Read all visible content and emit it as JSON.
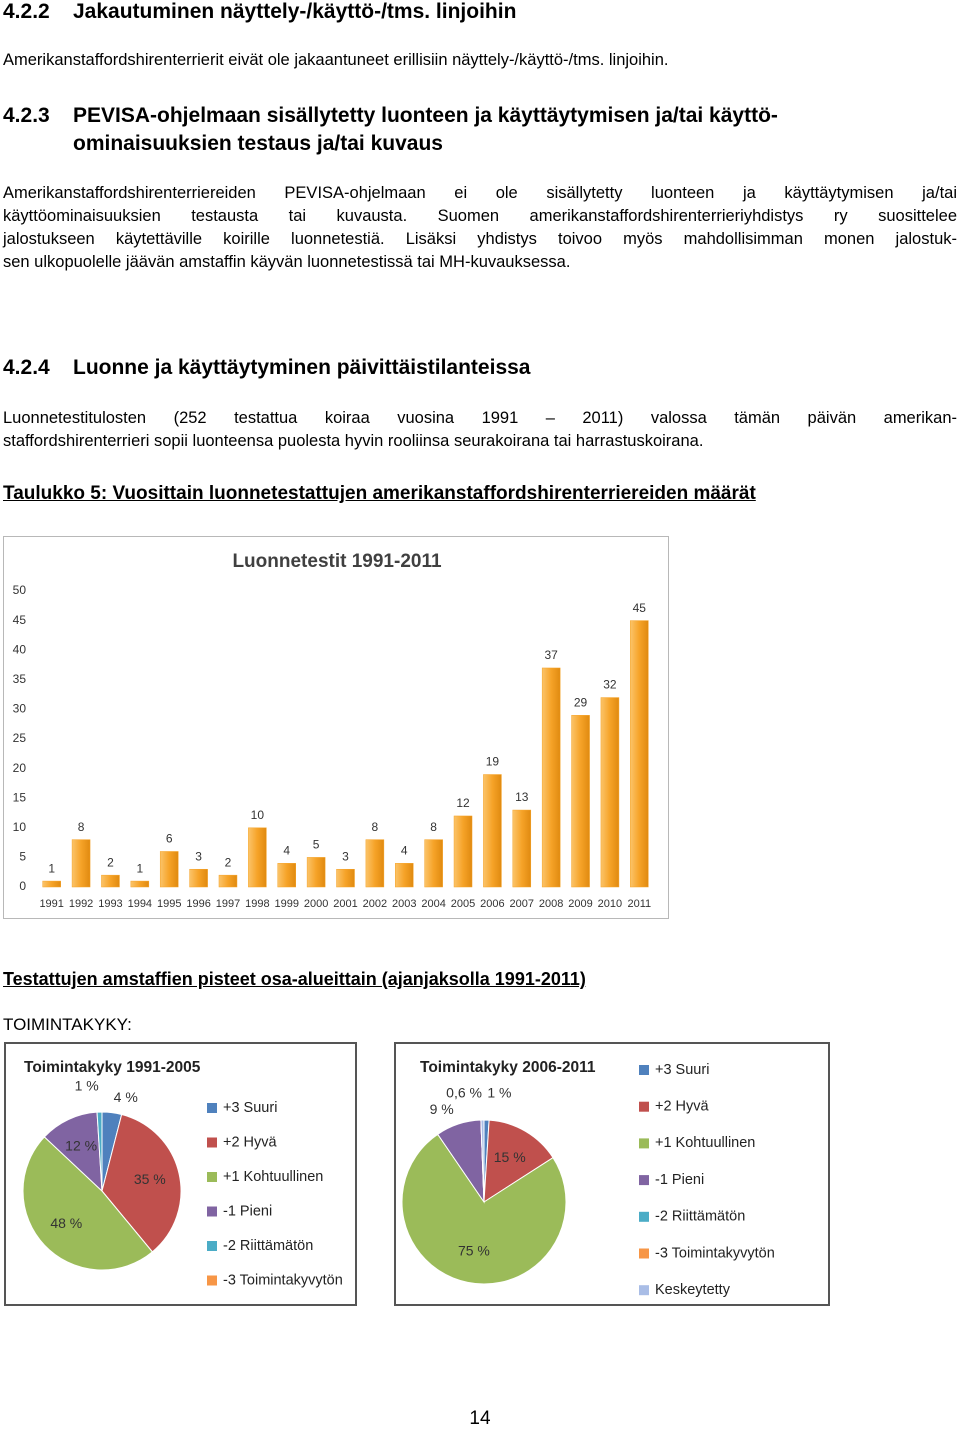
{
  "sections": [
    {
      "number": "4.2.2",
      "title_lines": [
        "Jakautuminen näyttely-/käyttö-/tms. linjoihin"
      ],
      "text_lines": [
        "Amerikanstaffordshirenterrierit eivät ole jakaantuneet erillisiin näyttely-/käyttö-/tms. linjoihin."
      ]
    },
    {
      "number": "4.2.3",
      "title_lines": [
        "PEVISA-ohjelmaan sisällytetty luonteen ja käyttäytymisen ja/tai käyttö-",
        "ominaisuuksien testaus ja/tai kuvaus"
      ],
      "text_lines": [
        "Amerikanstaffordshirenterriereiden PEVISA-ohjelmaan ei ole sisällytetty luonteen ja käyttäytymisen ja/tai",
        "käyttöominaisuuksien testausta tai kuvausta. Suomen amerikanstaffordshirenterrieriyhdistys ry suosittelee",
        "jalostukseen käytettäville koirille luonnetestiä. Lisäksi yhdistys toivoo myös mahdollisimman monen jalostuk-",
        "sen ulkopuolelle jäävän amstaffin käyvän luonnetestissä tai MH-kuvauksessa."
      ]
    },
    {
      "number": "4.2.4",
      "title_lines": [
        "Luonne ja käyttäytyminen päivittäistilanteissa"
      ],
      "text_lines": [
        "Luonnetestitulosten (252 testattua koiraa vuosina 1991 – 2011) valossa tämän päivän amerikan-",
        "staffordshirenterrieri sopii luonteensa puolesta hyvin rooliinsa seurakoirana tai harrastuskoirana."
      ]
    }
  ],
  "table_caption": "Taulukko 5: Vuosittain luonnetestattujen amerikanstaffordshirenterriereiden määrät",
  "subheading": "Testattujen amstaffien pisteet osa-alueittain (ajanjaksolla 1991-2011)",
  "label": "TOIMINTAKYKY:",
  "page_number": "14",
  "chart_data": [
    {
      "type": "bar",
      "title": "Luonnetestit 1991-2011",
      "categories": [
        "1991",
        "1992",
        "1993",
        "1994",
        "1995",
        "1996",
        "1997",
        "1998",
        "1999",
        "2000",
        "2001",
        "2002",
        "2003",
        "2004",
        "2005",
        "2006",
        "2007",
        "2008",
        "2009",
        "2010",
        "2011"
      ],
      "values": [
        1,
        8,
        2,
        1,
        6,
        3,
        2,
        10,
        4,
        5,
        3,
        8,
        4,
        8,
        12,
        19,
        13,
        37,
        29,
        32,
        45
      ],
      "color": "#f6a328",
      "ylim": [
        0,
        50
      ],
      "yticks": [
        0,
        5,
        10,
        15,
        20,
        25,
        30,
        35,
        40,
        45,
        50
      ]
    },
    {
      "type": "pie",
      "title": "Toimintakyky 1991-2005",
      "categories": [
        "+3 Suuri",
        "+2 Hyvä",
        "+1 Kohtuullinen",
        "-1 Pieni",
        "-2 Riittämätön",
        "-3 Toimintakyvytön"
      ],
      "values": [
        4,
        35,
        48,
        12,
        1,
        0
      ],
      "value_labels": [
        "4 %",
        "35 %",
        "48 %",
        "12 %",
        "1 %",
        null
      ],
      "colors": [
        "#4f81bd",
        "#c0504d",
        "#9bbb59",
        "#8064a2",
        "#4bacc6",
        "#f79646"
      ]
    },
    {
      "type": "pie",
      "title": "Toimintakyky 2006-2011",
      "categories": [
        "+3 Suuri",
        "+2 Hyvä",
        "+1 Kohtuullinen",
        "-1 Pieni",
        "-2 Riittämätön",
        "-3 Toimintakyvytön",
        "Keskeytetty"
      ],
      "values": [
        1,
        15,
        75,
        9,
        0,
        0,
        0.6
      ],
      "value_labels": [
        "1 %",
        "15 %",
        "75 %",
        "9 %",
        null,
        null,
        "0,6 %"
      ],
      "colors": [
        "#4f81bd",
        "#c0504d",
        "#9bbb59",
        "#8064a2",
        "#4bacc6",
        "#f79646",
        "#a9bde6"
      ]
    }
  ]
}
